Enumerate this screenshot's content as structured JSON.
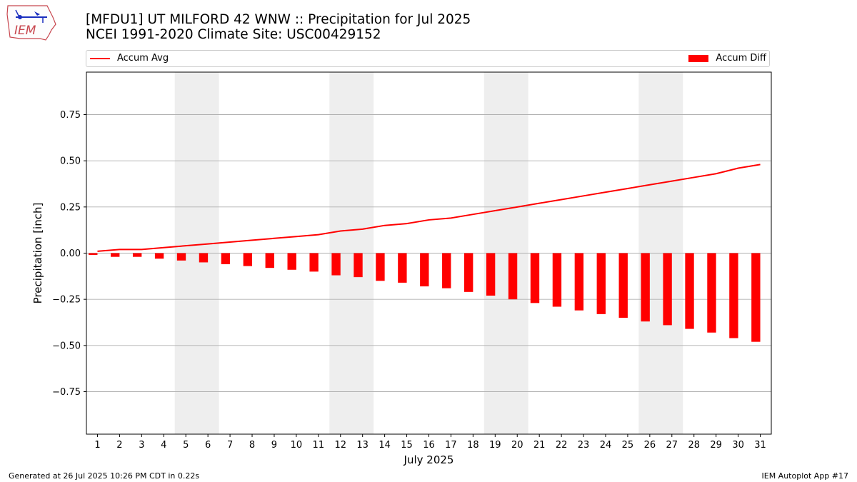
{
  "header": {
    "title_line1": "[MFDU1] UT MILFORD 42 WNW :: Precipitation for Jul 2025",
    "title_line2": "NCEI 1991-2020 Climate Site: USC00429152",
    "logo_text": "IEM",
    "logo_icon": "iowa-state-weather-station-logo"
  },
  "legend": {
    "line_label": "Accum Avg",
    "bar_label": "Accum Diff",
    "placement": "top, spanning plot width"
  },
  "footer": {
    "left": "Generated at 26 Jul 2025 10:26 PM CDT in 0.22s",
    "right": "IEM Autoplot App #17"
  },
  "colors": {
    "series": "#ff0000",
    "weekend_shade": "#eeeeee",
    "grid": "#b0b0b0"
  },
  "chart_data": {
    "type": "bar",
    "xlabel": "July 2025",
    "ylabel": "Precipitation [inch]",
    "x": [
      1,
      2,
      3,
      4,
      5,
      6,
      7,
      8,
      9,
      10,
      11,
      12,
      13,
      14,
      15,
      16,
      17,
      18,
      19,
      20,
      21,
      22,
      23,
      24,
      25,
      26,
      27,
      28,
      29,
      30,
      31
    ],
    "xlim": [
      0.5,
      31.5
    ],
    "ylim": [
      -0.98,
      0.98
    ],
    "yticks": [
      -0.75,
      -0.5,
      -0.25,
      0.0,
      0.25,
      0.5,
      0.75
    ],
    "ytick_labels": [
      "−0.75",
      "−0.50",
      "−0.25",
      "0.00",
      "0.25",
      "0.50",
      "0.75"
    ],
    "grid": "horizontal",
    "weekend_shading": [
      [
        5,
        6
      ],
      [
        12,
        13
      ],
      [
        19,
        20
      ],
      [
        26,
        27
      ]
    ],
    "series": [
      {
        "name": "Accum Avg",
        "kind": "line",
        "values": [
          0.01,
          0.02,
          0.02,
          0.03,
          0.04,
          0.05,
          0.06,
          0.07,
          0.08,
          0.09,
          0.1,
          0.12,
          0.13,
          0.15,
          0.16,
          0.18,
          0.19,
          0.21,
          0.23,
          0.25,
          0.27,
          0.29,
          0.31,
          0.33,
          0.35,
          0.37,
          0.39,
          0.41,
          0.43,
          0.46,
          0.48
        ]
      },
      {
        "name": "Accum Diff",
        "kind": "bar",
        "values": [
          -0.01,
          -0.02,
          -0.02,
          -0.03,
          -0.04,
          -0.05,
          -0.06,
          -0.07,
          -0.08,
          -0.09,
          -0.1,
          -0.12,
          -0.13,
          -0.15,
          -0.16,
          -0.18,
          -0.19,
          -0.21,
          -0.23,
          -0.25,
          -0.27,
          -0.29,
          -0.31,
          -0.33,
          -0.35,
          -0.37,
          -0.39,
          -0.41,
          -0.43,
          -0.46,
          -0.48
        ]
      }
    ]
  }
}
